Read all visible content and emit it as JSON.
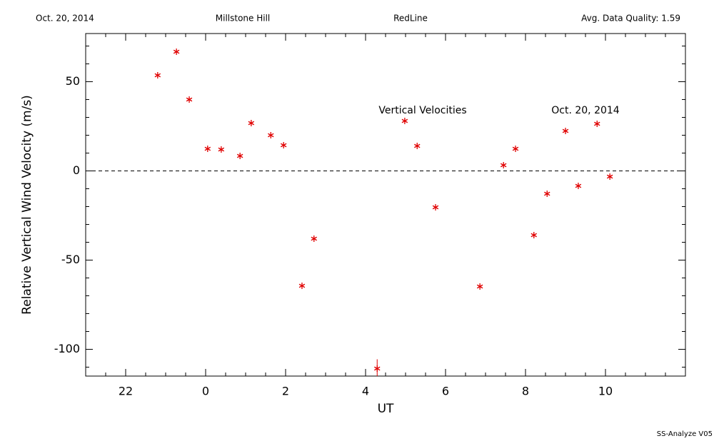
{
  "chart_data": {
    "type": "scatter",
    "header": [
      "Oct. 20, 2014",
      "Millstone Hill",
      "RedLine",
      "Avg. Data Quality: 1.59"
    ],
    "footer": "SS-Analyze V05",
    "xlabel": "UT",
    "ylabel": "Relative Vertical Wind Velocity (m/s)",
    "annotations": [
      "Vertical Velocities",
      "Oct. 20, 2014"
    ],
    "xlim": [
      -3,
      12
    ],
    "ylim": [
      -115,
      77
    ],
    "xticks": [
      {
        "value": -2,
        "label": "22"
      },
      0,
      2,
      4,
      6,
      8,
      10
    ],
    "yticks": [
      -100,
      -50,
      0,
      50
    ],
    "minor_ticks": {
      "x": 4,
      "y": 5
    },
    "hline": 0,
    "color": "#e00000",
    "x": [
      -1.2,
      -0.73,
      -0.41,
      0.05,
      0.39,
      0.86,
      1.14,
      1.63,
      1.95,
      2.41,
      2.71,
      4.29,
      4.98,
      5.29,
      5.75,
      6.86,
      7.45,
      7.75,
      8.21,
      8.54,
      9.0,
      9.32,
      9.79,
      10.11
    ],
    "values": [
      53.6,
      66.8,
      40,
      12.4,
      12,
      8.4,
      26.8,
      20,
      14.4,
      -64.4,
      -38,
      -110.8,
      28,
      14,
      -20.4,
      -64.8,
      3.2,
      12.4,
      -36,
      -12.8,
      22.4,
      -8.4,
      26.4,
      -3.2
    ],
    "errors": [
      null,
      null,
      null,
      null,
      null,
      null,
      null,
      null,
      null,
      null,
      null,
      5.2,
      null,
      null,
      null,
      null,
      null,
      null,
      null,
      null,
      null,
      null,
      null,
      null
    ]
  }
}
